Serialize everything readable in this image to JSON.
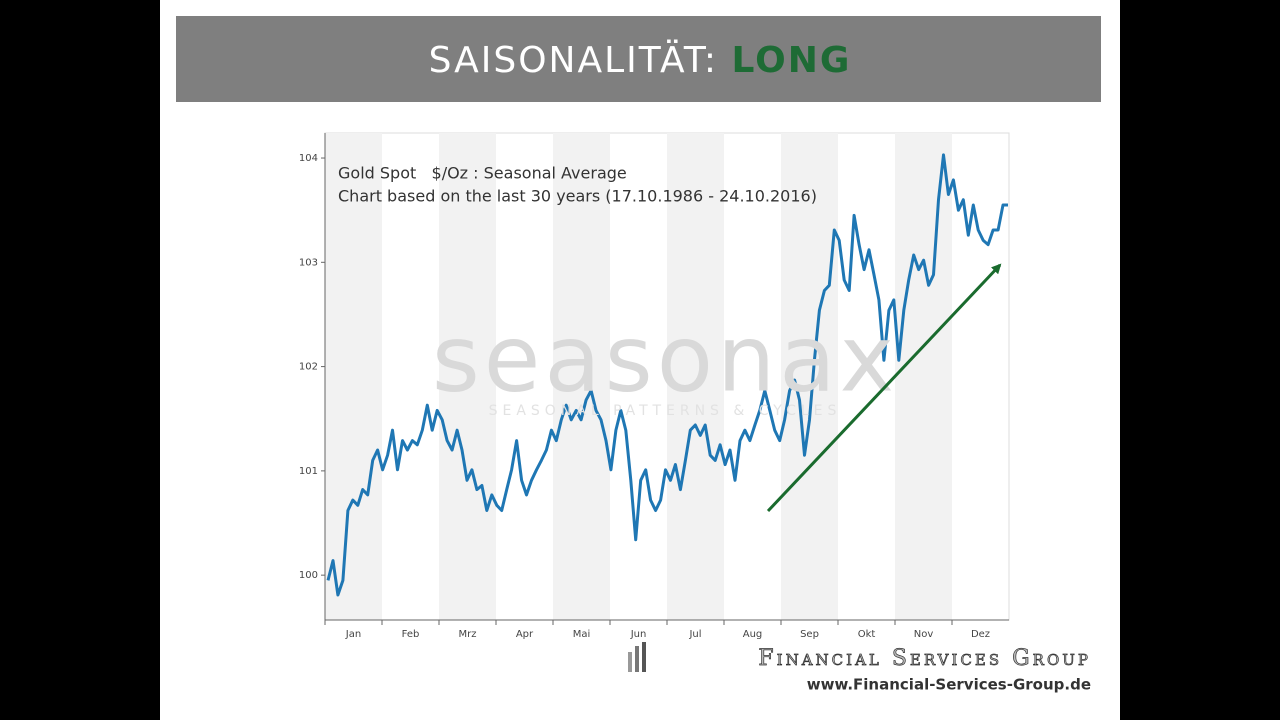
{
  "header": {
    "title": "SAISONALITÄT:",
    "highlight": "LONG"
  },
  "watermark": {
    "brand": "seasonax",
    "tagline": "SEASONAL PATTERNS & CYCLES"
  },
  "footer": {
    "company": "Financial Services Group",
    "url": "www.Financial-Services-Group.de"
  },
  "chart_data": {
    "type": "line",
    "title": "Gold Spot   $/Oz : Seasonal Average",
    "subtitle": "Chart based on the last 30 years (17.10.1986 - 24.10.2016)",
    "months": [
      "Jan",
      "Feb",
      "Mrz",
      "Apr",
      "Mai",
      "Jun",
      "Jul",
      "Aug",
      "Sep",
      "Okt",
      "Nov",
      "Dez"
    ],
    "color": "#1f77b4",
    "ylim": [
      99.57,
      104.24
    ],
    "yticks": [
      100,
      101,
      102,
      103,
      104
    ],
    "values": [
      99.95,
      100.14,
      99.81,
      99.95,
      100.62,
      100.72,
      100.67,
      100.82,
      100.77,
      101.1,
      101.2,
      101.01,
      101.15,
      101.39,
      101.01,
      101.29,
      101.2,
      101.29,
      101.25,
      101.39,
      101.63,
      101.39,
      101.58,
      101.49,
      101.29,
      101.2,
      101.39,
      101.2,
      100.91,
      101.01,
      100.82,
      100.86,
      100.62,
      100.77,
      100.67,
      100.62,
      100.82,
      101.01,
      101.29,
      100.91,
      100.77,
      100.91,
      101.01,
      101.1,
      101.2,
      101.39,
      101.29,
      101.49,
      101.63,
      101.49,
      101.58,
      101.49,
      101.68,
      101.77,
      101.58,
      101.49,
      101.29,
      101.01,
      101.39,
      101.58,
      101.39,
      100.91,
      100.34,
      100.91,
      101.01,
      100.72,
      100.62,
      100.72,
      101.01,
      100.91,
      101.06,
      100.82,
      101.1,
      101.39,
      101.44,
      101.34,
      101.44,
      101.15,
      101.1,
      101.25,
      101.06,
      101.2,
      100.91,
      101.29,
      101.39,
      101.29,
      101.44,
      101.58,
      101.77,
      101.58,
      101.39,
      101.29,
      101.49,
      101.77,
      101.87,
      101.68,
      101.15,
      101.49,
      102.06,
      102.54,
      102.73,
      102.78,
      103.31,
      103.21,
      102.83,
      102.73,
      103.45,
      103.17,
      102.93,
      103.12,
      102.88,
      102.64,
      102.06,
      102.54,
      102.64,
      102.06,
      102.54,
      102.83,
      103.07,
      102.93,
      103.02,
      102.78,
      102.88,
      103.6,
      104.03,
      103.65,
      103.79,
      103.5,
      103.6,
      103.26,
      103.55,
      103.31,
      103.21,
      103.17,
      103.31,
      103.31,
      103.55,
      103.55
    ]
  }
}
